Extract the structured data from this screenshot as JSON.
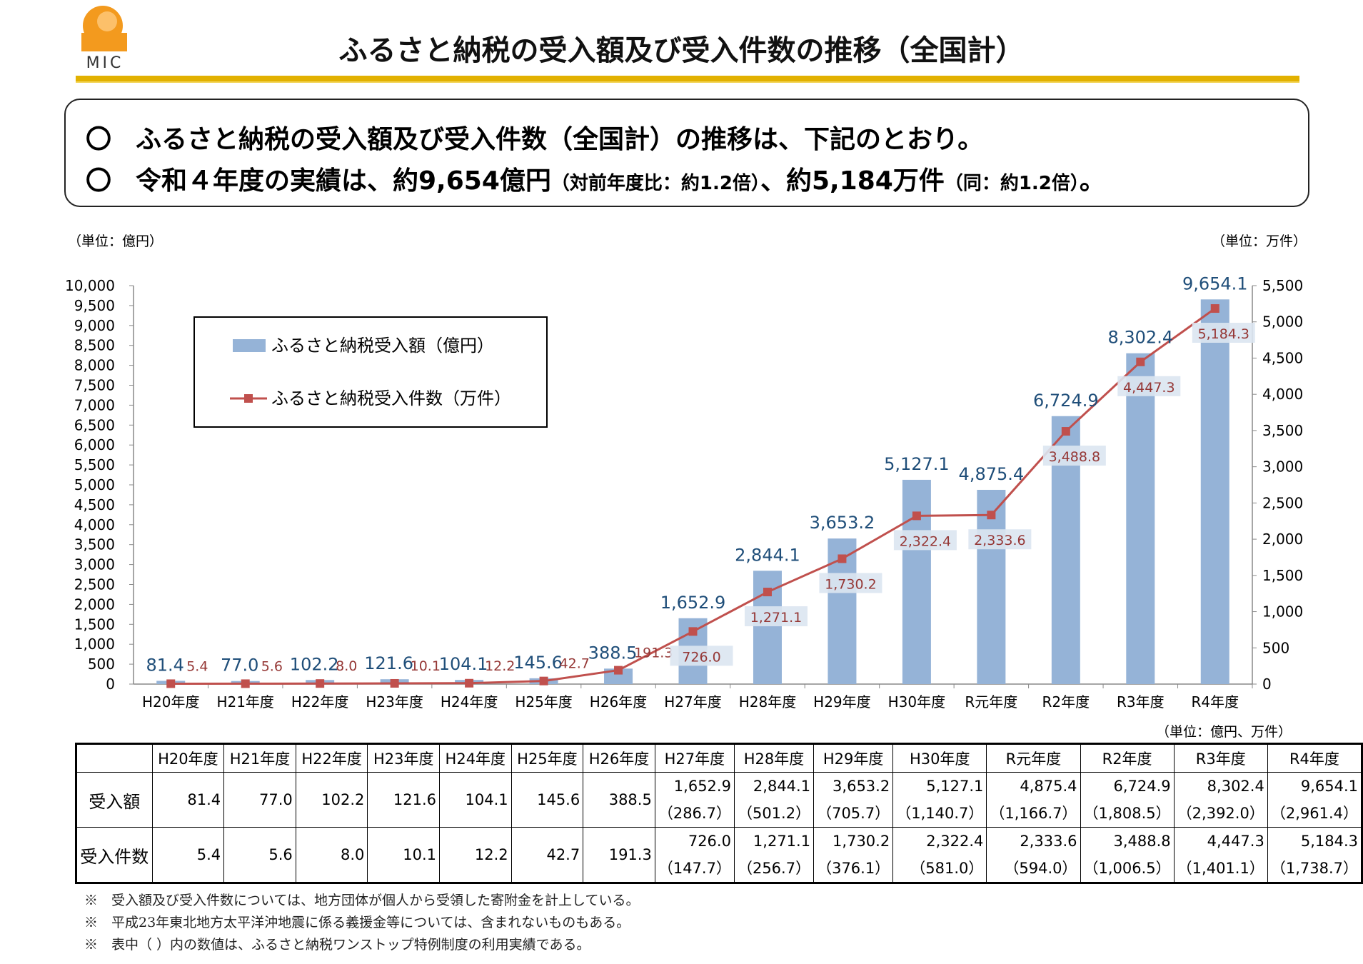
{
  "header": {
    "logo_text": "MIC",
    "title": "ふるさと納税の受入額及び受入件数の推移（全国計）"
  },
  "summary": {
    "line1_mark": "〇",
    "line1": "ふるさと納税の受入額及び受入件数（全国計）の推移は、下記のとおり。",
    "line2_mark": "〇",
    "line2_a": "令和４年度の実績は、約9,654億円",
    "line2_b": "（対前年度比：約1.2倍）",
    "line2_c": "、約5,184万件",
    "line2_d": "（同：約1.2倍）",
    "line2_e": "。"
  },
  "chart_data": {
    "type": "bar",
    "categories": [
      "H20年度",
      "H21年度",
      "H22年度",
      "H23年度",
      "H24年度",
      "H25年度",
      "H26年度",
      "H27年度",
      "H28年度",
      "H29年度",
      "H30年度",
      "R元年度",
      "R2年度",
      "R3年度",
      "R4年度"
    ],
    "series": [
      {
        "name": "ふるさと納税受入額（億円）",
        "type": "bar",
        "axis": "left",
        "color": "#95b3d7",
        "values": [
          81.4,
          77.0,
          102.2,
          121.6,
          104.1,
          145.6,
          388.5,
          1652.9,
          2844.1,
          3653.2,
          5127.1,
          4875.4,
          6724.9,
          8302.4,
          9654.1
        ],
        "labels": [
          "81.4",
          "77.0",
          "102.2",
          "121.6",
          "104.1",
          "145.6",
          "388.5",
          "1,652.9",
          "2,844.1",
          "3,653.2",
          "5,127.1",
          "4,875.4",
          "6,724.9",
          "8,302.4",
          "9,654.1"
        ]
      },
      {
        "name": "ふるさと納税受入件数（万件）",
        "type": "line",
        "axis": "right",
        "color": "#c0504d",
        "values": [
          5.4,
          5.6,
          8.0,
          10.1,
          12.2,
          42.7,
          191.3,
          726.0,
          1271.1,
          1730.2,
          2322.4,
          2333.6,
          3488.8,
          4447.3,
          5184.3
        ],
        "labels": [
          "5.4",
          "5.6",
          "8.0",
          "10.1",
          "12.2",
          "42.7",
          "191.3",
          "726.0",
          "1,271.1",
          "1,730.2",
          "2,322.4",
          "2,333.6",
          "3,488.8",
          "4,447.3",
          "5,184.3"
        ]
      }
    ],
    "y_left": {
      "unit_label": "（単位：億円）",
      "ylim": [
        0,
        10000
      ],
      "ticks": [
        "0",
        "500",
        "1,000",
        "1,500",
        "2,000",
        "2,500",
        "3,000",
        "3,500",
        "4,000",
        "4,500",
        "5,000",
        "5,500",
        "6,000",
        "6,500",
        "7,000",
        "7,500",
        "8,000",
        "8,500",
        "9,000",
        "9,500",
        "10,000"
      ]
    },
    "y_right": {
      "unit_label": "（単位：万件）",
      "ylim": [
        0,
        5500
      ],
      "ticks": [
        "0",
        "500",
        "1,000",
        "1,500",
        "2,000",
        "2,500",
        "3,000",
        "3,500",
        "4,000",
        "4,500",
        "5,000",
        "5,500"
      ]
    },
    "legend": {
      "position": "top-left"
    },
    "grid": false
  },
  "table": {
    "unit": "（単位：億円、万件）",
    "columns": [
      "H20年度",
      "H21年度",
      "H22年度",
      "H23年度",
      "H24年度",
      "H25年度",
      "H26年度",
      "H27年度",
      "H28年度",
      "H29年度",
      "H30年度",
      "R元年度",
      "R2年度",
      "R3年度",
      "R4年度"
    ],
    "rows": [
      {
        "label": "受入額",
        "values": [
          "81.4",
          "77.0",
          "102.2",
          "121.6",
          "104.1",
          "145.6",
          "388.5",
          "1,652.9",
          "2,844.1",
          "3,653.2",
          "5,127.1",
          "4,875.4",
          "6,724.9",
          "8,302.4",
          "9,654.1"
        ],
        "sub": [
          "",
          "",
          "",
          "",
          "",
          "",
          "",
          "（286.7）",
          "（501.2）",
          "（705.7）",
          "（1,140.7）",
          "（1,166.7）",
          "（1,808.5）",
          "（2,392.0）",
          "（2,961.4）"
        ]
      },
      {
        "label": "受入件数",
        "values": [
          "5.4",
          "5.6",
          "8.0",
          "10.1",
          "12.2",
          "42.7",
          "191.3",
          "726.0",
          "1,271.1",
          "1,730.2",
          "2,322.4",
          "2,333.6",
          "3,488.8",
          "4,447.3",
          "5,184.3"
        ],
        "sub": [
          "",
          "",
          "",
          "",
          "",
          "",
          "",
          "（147.7）",
          "（256.7）",
          "（376.1）",
          "（581.0）",
          "（594.0）",
          "（1,006.5）",
          "（1,401.1）",
          "（1,738.7）"
        ]
      }
    ]
  },
  "notes": [
    "※　受入額及び受入件数については、地方団体が個人から受領した寄附金を計上している。",
    "※　平成23年東北地方太平洋沖地震に係る義援金等については、含まれないものもある。",
    "※　表中（ ）内の数値は、ふるさと納税ワンストップ特例制度の利用実績である。"
  ]
}
